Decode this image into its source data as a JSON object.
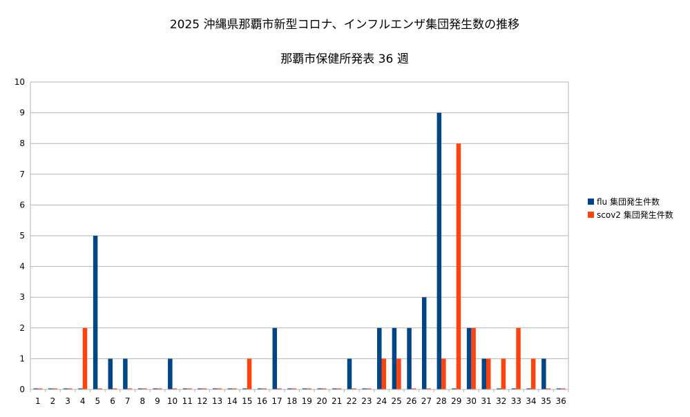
{
  "chart_data": {
    "type": "bar",
    "title": "2025  沖縄県那覇市新型コロナ、インフルエンザ集団発生数の推移",
    "subtitle": "那覇市保健所発表 36 週",
    "xlabel": "",
    "ylabel": "",
    "ylim": [
      0,
      10
    ],
    "yticks": [
      "0",
      "1",
      "2",
      "3",
      "4",
      "5",
      "6",
      "7",
      "8",
      "9",
      "10"
    ],
    "grid": true,
    "legend_position": "right",
    "categories": [
      "1",
      "2",
      "3",
      "4",
      "5",
      "6",
      "7",
      "8",
      "9",
      "10",
      "11",
      "12",
      "13",
      "14",
      "15",
      "16",
      "17",
      "18",
      "19",
      "20",
      "21",
      "22",
      "23",
      "24",
      "25",
      "26",
      "27",
      "28",
      "29",
      "30",
      "31",
      "32",
      "33",
      "34",
      "35",
      "36"
    ],
    "series": [
      {
        "name": "flu 集団発生件数",
        "color": "#004586",
        "values": [
          0,
          0,
          0,
          0,
          5,
          1,
          1,
          0,
          0,
          1,
          0,
          0,
          0,
          0,
          0,
          0,
          2,
          0,
          0,
          0,
          0,
          1,
          0,
          2,
          2,
          2,
          3,
          9,
          0,
          2,
          1,
          0,
          0,
          0,
          1,
          0
        ]
      },
      {
        "name": "scov2 集団発生件数",
        "color": "#FF420E",
        "values": [
          0,
          0,
          0,
          2,
          0,
          0,
          0,
          0,
          0,
          0,
          0,
          0,
          0,
          0,
          1,
          0,
          0,
          0,
          0,
          0,
          0,
          0,
          0,
          1,
          1,
          0,
          0,
          1,
          8,
          2,
          1,
          1,
          2,
          1,
          0,
          0
        ]
      }
    ]
  }
}
